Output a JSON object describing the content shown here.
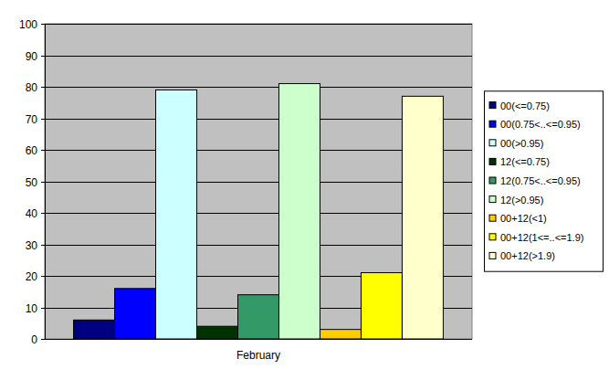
{
  "chart_data": {
    "type": "bar",
    "categories": [
      "February"
    ],
    "series": [
      {
        "name": "00(<=0.75)",
        "color": "#000080",
        "values": [
          6
        ]
      },
      {
        "name": "00(0.75<..<=0.95)",
        "color": "#0000ff",
        "values": [
          16
        ]
      },
      {
        "name": "00(>0.95)",
        "color": "#ccffff",
        "values": [
          79
        ]
      },
      {
        "name": "12(<=0.75)",
        "color": "#003300",
        "values": [
          4
        ]
      },
      {
        "name": "12(0.75<..<=0.95)",
        "color": "#339966",
        "values": [
          14
        ]
      },
      {
        "name": "12(>0.95)",
        "color": "#ccffcc",
        "values": [
          81
        ]
      },
      {
        "name": "00+12(<1)",
        "color": "#ffcc00",
        "values": [
          3
        ]
      },
      {
        "name": "00+12(1<=..<=1.9)",
        "color": "#ffff00",
        "values": [
          21
        ]
      },
      {
        "name": "00+12(>1.9)",
        "color": "#ffffcc",
        "values": [
          77
        ]
      }
    ],
    "ylim": [
      0,
      100
    ],
    "yticks": [
      0,
      10,
      20,
      30,
      40,
      50,
      60,
      70,
      80,
      90,
      100
    ],
    "grid": true,
    "legend": "right"
  }
}
